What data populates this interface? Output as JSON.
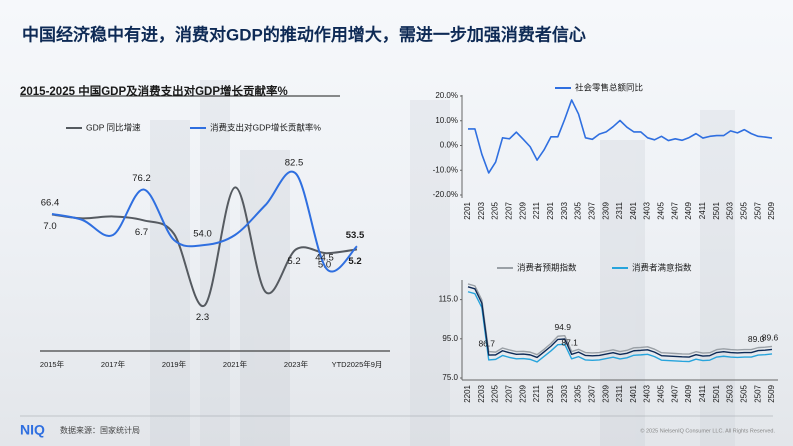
{
  "header": {
    "title": "中国经济稳中有进，消费对GDP的推动作用增大，需进一步加强消费者信心"
  },
  "footer": {
    "logo": "NIQ",
    "source": "数据来源：国家统计局",
    "copyright": "© 2025 NielsenIQ Consumer LLC. All Rights Reserved."
  },
  "chart_data": [
    {
      "type": "line",
      "title": "2015-2025 中国GDP及消费支出对GDP增长贡献率%",
      "categories": [
        "2015年",
        null,
        "2017年",
        null,
        "2019年",
        null,
        "2021年",
        null,
        "2023年",
        null,
        "YTD2025年9月"
      ],
      "ylim": [
        0,
        12.4
      ],
      "y2lim": [
        12,
        108
      ],
      "series": [
        {
          "name": "GDP 同比增速",
          "color": "#555a60",
          "values": [
            7.0,
            6.8,
            6.9,
            6.7,
            6.0,
            2.3,
            8.4,
            3.0,
            5.2,
            5.0,
            5.2
          ],
          "value_labels": [
            "7.0",
            null,
            null,
            "6.7",
            null,
            "2.3",
            null,
            null,
            "5.2",
            "5.0",
            "5.2"
          ]
        },
        {
          "name": "消费支出对GDP增长贡献率%",
          "color": "#2f6fe0",
          "axis": "y2",
          "values": [
            66.4,
            64.0,
            58.0,
            76.2,
            56.0,
            54.0,
            58.0,
            70.0,
            82.5,
            44.5,
            53.5
          ],
          "value_labels": [
            "66.4",
            null,
            null,
            "76.2",
            null,
            "54.0",
            null,
            null,
            "82.5",
            "44.5",
            "53.5"
          ]
        }
      ]
    },
    {
      "type": "line",
      "categories": [
        "2201",
        null,
        "2203",
        null,
        "2205",
        null,
        "2207",
        null,
        "2209",
        null,
        "2211",
        null,
        "2301",
        null,
        "2303",
        null,
        "2305",
        null,
        "2307",
        null,
        "2309",
        null,
        "2311",
        null,
        "2401",
        null,
        "2403",
        null,
        "2405",
        null,
        "2407",
        null,
        "2409",
        null,
        "2411",
        null,
        "2501",
        null,
        "2503",
        null,
        "2505",
        null,
        "2507",
        null,
        "2509"
      ],
      "ylim": [
        -20,
        20
      ],
      "yticks": [
        {
          "value": 20,
          "label": "20.0%"
        },
        {
          "value": 10,
          "label": "10.0%"
        },
        {
          "value": 0,
          "label": "0.0%"
        },
        {
          "value": -10,
          "label": "-10.0%"
        },
        {
          "value": -20,
          "label": "-20.0%"
        }
      ],
      "series": [
        {
          "name": "社会零售总额同比",
          "color": "#2f6fe0",
          "values": [
            6.7,
            6.7,
            -3.5,
            -11.1,
            -6.7,
            3.1,
            2.7,
            5.4,
            2.5,
            -0.5,
            -5.9,
            -1.8,
            3.5,
            3.5,
            10.6,
            18.4,
            12.7,
            3.1,
            2.5,
            4.6,
            5.5,
            7.6,
            10.1,
            7.4,
            5.5,
            5.5,
            3.1,
            2.3,
            3.7,
            2.0,
            2.7,
            2.1,
            3.2,
            4.8,
            3.0,
            3.7,
            4.0,
            4.0,
            5.9,
            5.1,
            6.4,
            4.8,
            3.7,
            3.4,
            3.0
          ]
        }
      ]
    },
    {
      "type": "line",
      "categories": [
        "2201",
        null,
        "2203",
        null,
        "2205",
        null,
        "2207",
        null,
        "2209",
        null,
        "2211",
        null,
        "2301",
        null,
        "2303",
        null,
        "2305",
        null,
        "2307",
        null,
        "2309",
        null,
        "2311",
        null,
        "2401",
        null,
        "2403",
        null,
        "2405",
        null,
        "2407",
        null,
        "2409",
        null,
        "2411",
        null,
        "2501",
        null,
        "2503",
        null,
        "2505",
        null,
        "2507",
        null,
        "2509"
      ],
      "ylim": [
        75,
        125
      ],
      "yticks": [
        {
          "value": 115,
          "label": "115.0"
        },
        {
          "value": 95,
          "label": "95.0"
        },
        {
          "value": 75,
          "label": "75.0"
        }
      ],
      "series": [
        {
          "name": "消费者预期指数",
          "color": "#9aa0a6",
          "values": [
            123.0,
            122.0,
            114.8,
            88.5,
            88.2,
            90.3,
            89.3,
            88.5,
            88.6,
            88.2,
            86.9,
            89.6,
            92.6,
            96.3,
            96.6,
            88.5,
            89.6,
            88.0,
            87.8,
            88.0,
            88.7,
            89.4,
            88.5,
            89.1,
            90.4,
            90.6,
            90.9,
            89.7,
            87.9,
            87.7,
            87.5,
            87.3,
            87.2,
            88.4,
            87.7,
            87.9,
            89.5,
            89.9,
            89.5,
            89.3,
            89.5,
            89.5,
            90.5,
            90.7,
            91.1
          ]
        },
        {
          "name": "消费者满意指数",
          "color": "#27a4dc",
          "values": [
            119.0,
            118.0,
            111.0,
            84.2,
            84.5,
            86.5,
            85.5,
            84.8,
            84.9,
            84.5,
            83.2,
            86.0,
            88.8,
            92.0,
            92.2,
            84.8,
            85.9,
            84.2,
            84.0,
            84.2,
            84.9,
            85.6,
            84.7,
            85.3,
            86.6,
            86.8,
            87.1,
            85.9,
            84.1,
            83.9,
            83.7,
            83.5,
            83.4,
            84.6,
            83.9,
            84.1,
            85.7,
            86.1,
            85.7,
            85.5,
            85.7,
            85.7,
            86.7,
            86.9,
            87.3
          ]
        },
        {
          "color": "#0e2a55",
          "values": [
            121.5,
            120.5,
            113.2,
            86.7,
            86.8,
            88.9,
            87.9,
            87.1,
            87.2,
            86.8,
            85.5,
            88.3,
            91.2,
            94.7,
            94.9,
            87.1,
            88.2,
            86.5,
            86.3,
            86.5,
            87.2,
            87.9,
            87.0,
            87.6,
            88.9,
            89.1,
            89.4,
            88.2,
            86.4,
            86.2,
            86.0,
            85.8,
            85.7,
            86.9,
            86.2,
            86.4,
            88.0,
            88.4,
            88.0,
            87.8,
            88.0,
            88.0,
            89.0,
            89.2,
            89.6
          ],
          "value_labels": [
            null,
            null,
            null,
            "86.7",
            null,
            null,
            null,
            null,
            null,
            null,
            null,
            null,
            null,
            null,
            "94.9",
            "87.1",
            null,
            null,
            null,
            null,
            null,
            null,
            null,
            null,
            null,
            null,
            null,
            null,
            null,
            null,
            null,
            null,
            null,
            null,
            null,
            null,
            null,
            null,
            null,
            null,
            null,
            null,
            "89.0",
            null,
            "89.6"
          ]
        }
      ]
    }
  ]
}
